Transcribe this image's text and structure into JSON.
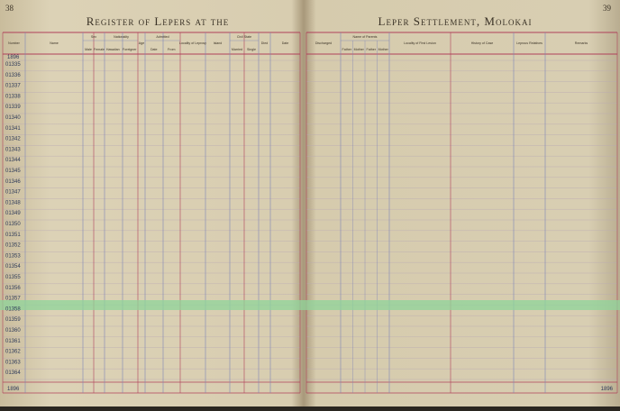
{
  "left_page": {
    "page_number": "38",
    "title": "Register of Lepers at the",
    "year": "1896",
    "columns": [
      {
        "label": "Number"
      },
      {
        "label": "Name"
      },
      {
        "label": "Sex",
        "sub": [
          "Male",
          "Female"
        ]
      },
      {
        "label": "Nationality",
        "sub": [
          "Hawaiian",
          "Foreigner"
        ]
      },
      {
        "label": "Age"
      },
      {
        "label": "Admitted",
        "sub": [
          "Date",
          "From"
        ]
      },
      {
        "label": "Locality of Leprosy"
      },
      {
        "label": "Island"
      },
      {
        "label": "Civil State",
        "sub": [
          "Married",
          "Single"
        ]
      },
      {
        "label": "Died"
      },
      {
        "label": "Date"
      }
    ],
    "rows": [
      "01335",
      "01336",
      "01337",
      "01338",
      "01339",
      "01340",
      "01341",
      "01342",
      "01343",
      "01344",
      "01345",
      "01346",
      "01347",
      "01348",
      "01349",
      "01350",
      "01351",
      "01352",
      "01353",
      "01354",
      "01355",
      "01356",
      "01357",
      "01358",
      "01359",
      "01360",
      "01361",
      "01362",
      "01363",
      "01364"
    ],
    "footer_year": "1896"
  },
  "right_page": {
    "page_number": "39",
    "title": "Leper Settlement, Molokai",
    "columns": [
      {
        "label": "Discharged"
      },
      {
        "label": "Name of Parents",
        "sub": [
          "Father",
          "Mother",
          "Father",
          "Mother"
        ]
      },
      {
        "label": "Locality of First Lesion"
      },
      {
        "label": "History of Case"
      },
      {
        "label": "Leprous Relatives"
      },
      {
        "label": "Remarks"
      }
    ],
    "footer_year": "1896"
  }
}
